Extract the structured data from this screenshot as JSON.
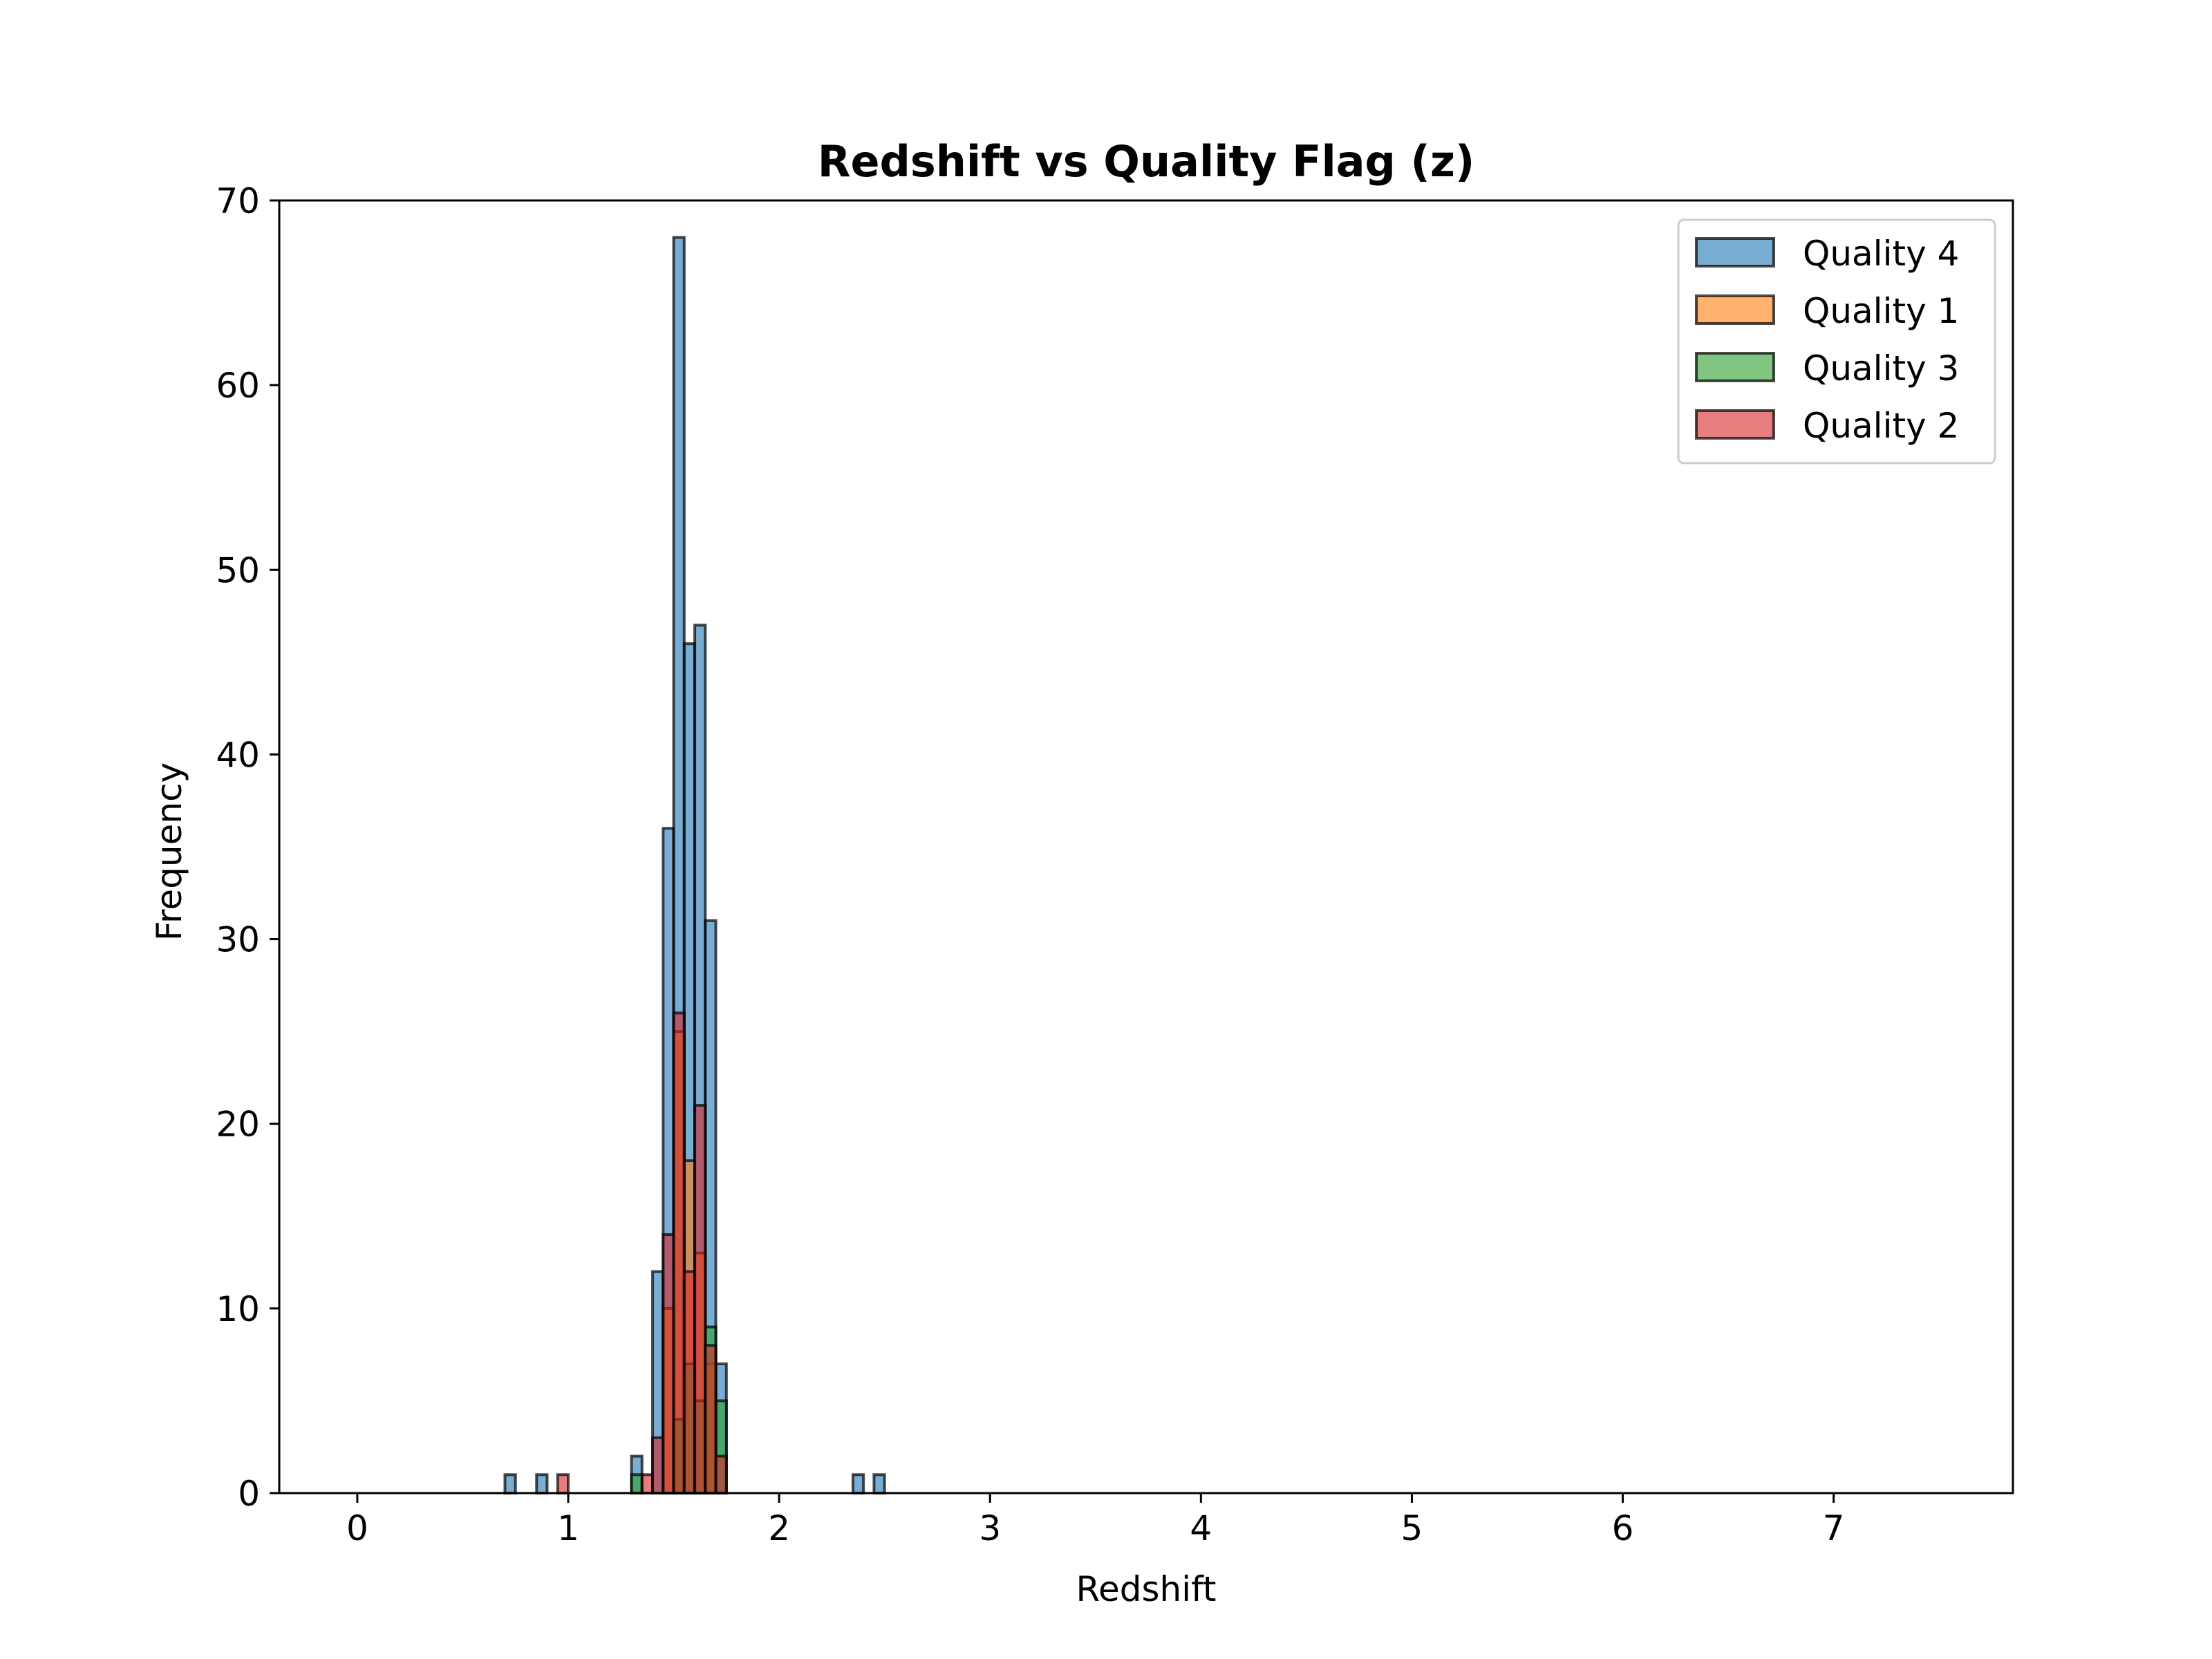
{
  "chart_data": {
    "type": "histogram",
    "title": "Redshift vs Quality Flag (z)",
    "xlabel": "Redshift",
    "ylabel": "Frequency",
    "xlim": [
      -0.37,
      7.85
    ],
    "ylim": [
      0,
      70
    ],
    "xticks": [
      0,
      1,
      2,
      3,
      4,
      5,
      6,
      7
    ],
    "yticks": [
      0,
      10,
      20,
      30,
      40,
      50,
      60,
      70
    ],
    "bin_width": 0.05,
    "baseline_range": [
      0,
      7.45
    ],
    "legend_position": "upper right",
    "grid": false,
    "series": [
      {
        "name": "Quality 4",
        "color": "#1f77b4",
        "bins": [
          {
            "x": 0.7,
            "count": 1
          },
          {
            "x": 0.85,
            "count": 1
          },
          {
            "x": 1.3,
            "count": 2
          },
          {
            "x": 1.4,
            "count": 12
          },
          {
            "x": 1.45,
            "count": 36
          },
          {
            "x": 1.5,
            "count": 68
          },
          {
            "x": 1.55,
            "count": 46
          },
          {
            "x": 1.6,
            "count": 47
          },
          {
            "x": 1.65,
            "count": 31
          },
          {
            "x": 1.7,
            "count": 7
          },
          {
            "x": 2.35,
            "count": 1
          },
          {
            "x": 2.45,
            "count": 1
          }
        ]
      },
      {
        "name": "Quality 1",
        "color": "#ff7f0e",
        "bins": [
          {
            "x": 1.45,
            "count": 10
          },
          {
            "x": 1.5,
            "count": 25
          },
          {
            "x": 1.55,
            "count": 18
          },
          {
            "x": 1.6,
            "count": 13
          },
          {
            "x": 1.65,
            "count": 7
          }
        ]
      },
      {
        "name": "Quality 3",
        "color": "#2ca02c",
        "bins": [
          {
            "x": 1.3,
            "count": 1
          },
          {
            "x": 1.5,
            "count": 4
          },
          {
            "x": 1.55,
            "count": 7
          },
          {
            "x": 1.6,
            "count": 5
          },
          {
            "x": 1.65,
            "count": 9
          },
          {
            "x": 1.7,
            "count": 5
          }
        ]
      },
      {
        "name": "Quality 2",
        "color": "#d62728",
        "bins": [
          {
            "x": 0.95,
            "count": 1
          },
          {
            "x": 1.35,
            "count": 1
          },
          {
            "x": 1.4,
            "count": 3
          },
          {
            "x": 1.45,
            "count": 14
          },
          {
            "x": 1.5,
            "count": 26
          },
          {
            "x": 1.55,
            "count": 12
          },
          {
            "x": 1.6,
            "count": 21
          },
          {
            "x": 1.65,
            "count": 8
          },
          {
            "x": 1.7,
            "count": 2
          }
        ]
      }
    ]
  }
}
